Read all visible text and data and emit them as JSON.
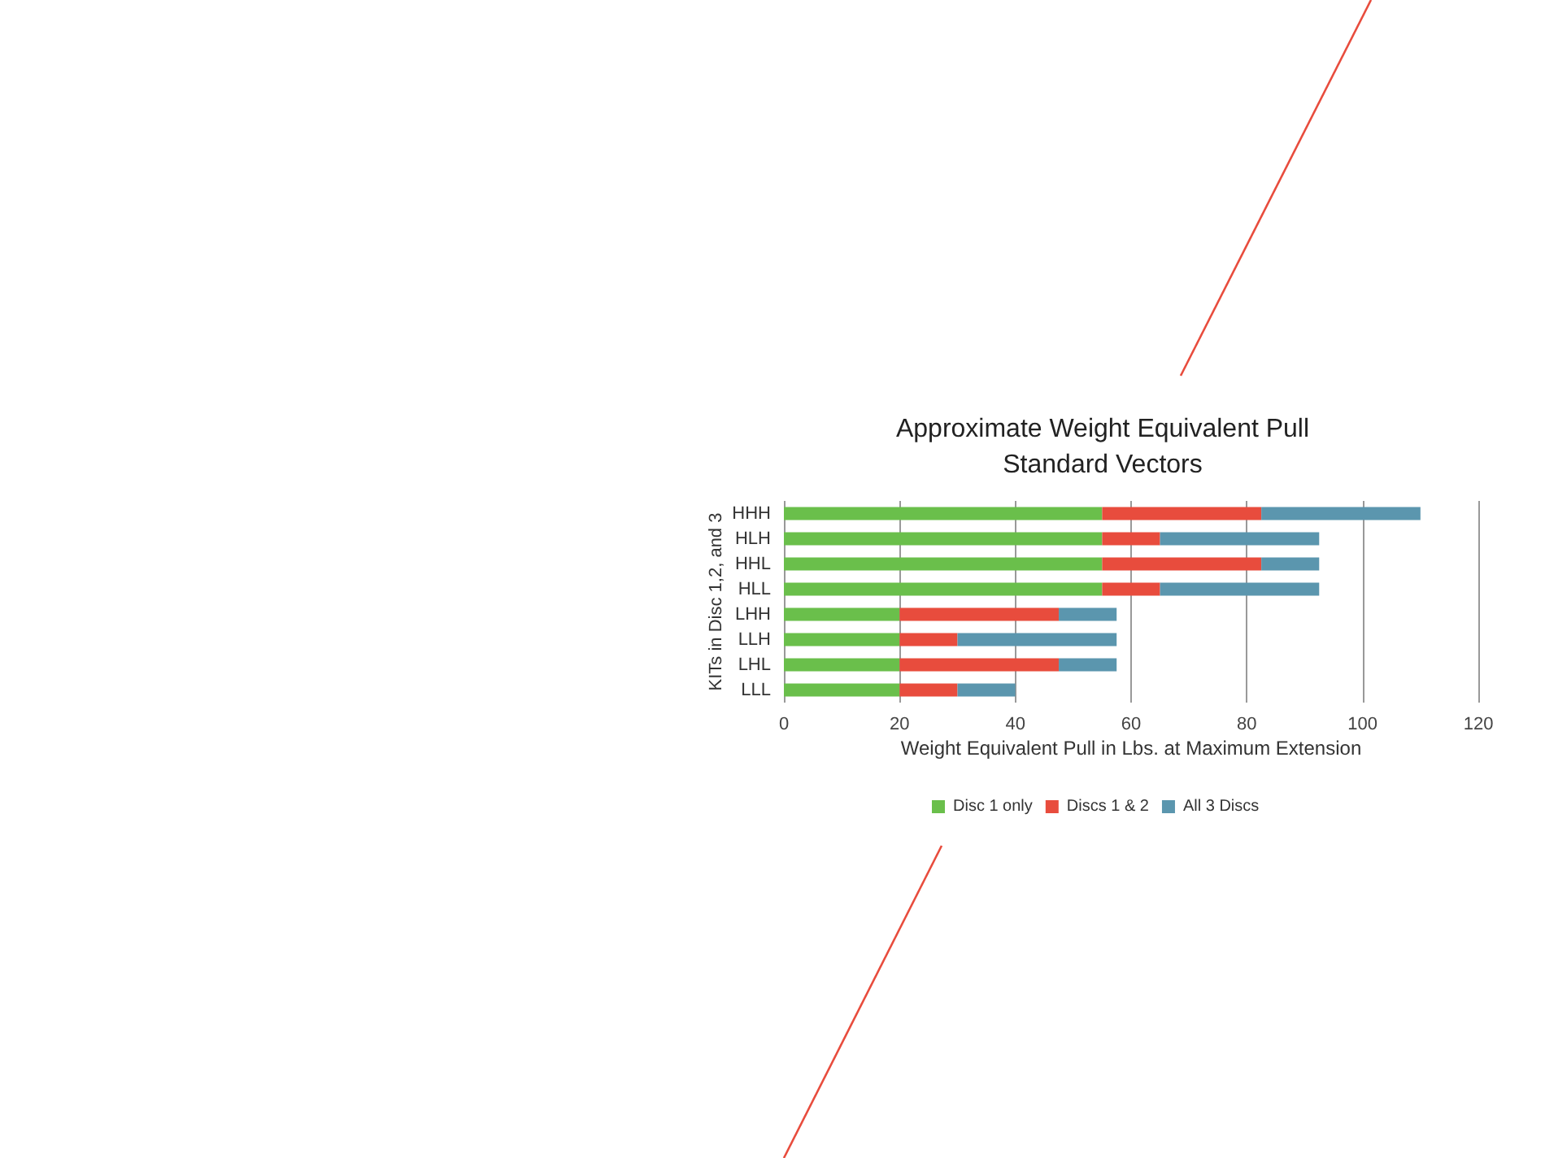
{
  "chart_data": {
    "type": "bar",
    "orientation": "horizontal",
    "stacked": true,
    "title": "Approximate Weight Equivalent Pull\nStandard Vectors",
    "xlabel": "Weight Equivalent Pull in Lbs. at Maximum Extension",
    "ylabel": "KITs in Disc 1,2, and 3",
    "categories": [
      "HHH",
      "HLH",
      "HHL",
      "HLL",
      "LHH",
      "LLH",
      "LHL",
      "LLL"
    ],
    "series": [
      {
        "name": "Disc 1 only",
        "color": "#6abf4b",
        "values": [
          55,
          55,
          55,
          55,
          20,
          20,
          20,
          20
        ]
      },
      {
        "name": "Discs 1 & 2",
        "color": "#e84c3d",
        "values": [
          27.5,
          10,
          27.5,
          10,
          27.5,
          10,
          27.5,
          10
        ]
      },
      {
        "name": "All 3 Discs",
        "color": "#5b96ae",
        "values": [
          27.5,
          27.5,
          10,
          27.5,
          10,
          27.5,
          10,
          10
        ]
      }
    ],
    "xlim": [
      0,
      120
    ],
    "xticks": [
      0,
      20,
      40,
      60,
      80,
      100,
      120
    ],
    "grid": "x",
    "legend": "bottom"
  }
}
